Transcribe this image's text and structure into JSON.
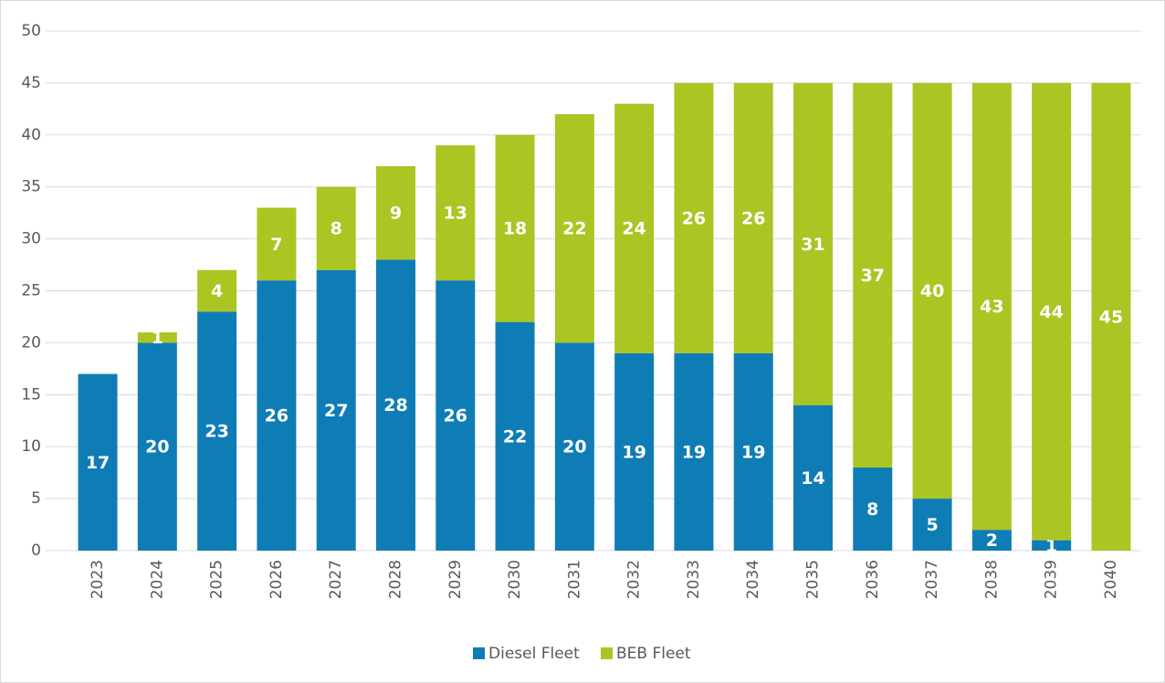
{
  "chart_data": {
    "type": "stacked_bar",
    "categories": [
      "2023",
      "2024",
      "2025",
      "2026",
      "2027",
      "2028",
      "2029",
      "2030",
      "2031",
      "2032",
      "2033",
      "2034",
      "2035",
      "2036",
      "2037",
      "2038",
      "2039",
      "2040"
    ],
    "series": [
      {
        "name": "Diesel Fleet",
        "color": "#0f7db5",
        "values": [
          17,
          20,
          23,
          26,
          27,
          28,
          26,
          22,
          20,
          19,
          19,
          19,
          14,
          8,
          5,
          2,
          1,
          null
        ]
      },
      {
        "name": "BEB Fleet",
        "color": "#abc523",
        "values": [
          null,
          1,
          4,
          7,
          8,
          9,
          13,
          18,
          22,
          24,
          26,
          26,
          31,
          37,
          40,
          43,
          44,
          45
        ]
      }
    ],
    "ylim": [
      0,
      50
    ],
    "yticks": [
      0,
      5,
      10,
      15,
      20,
      25,
      30,
      35,
      40,
      45,
      50
    ],
    "grid": true,
    "legend": "bottom"
  }
}
